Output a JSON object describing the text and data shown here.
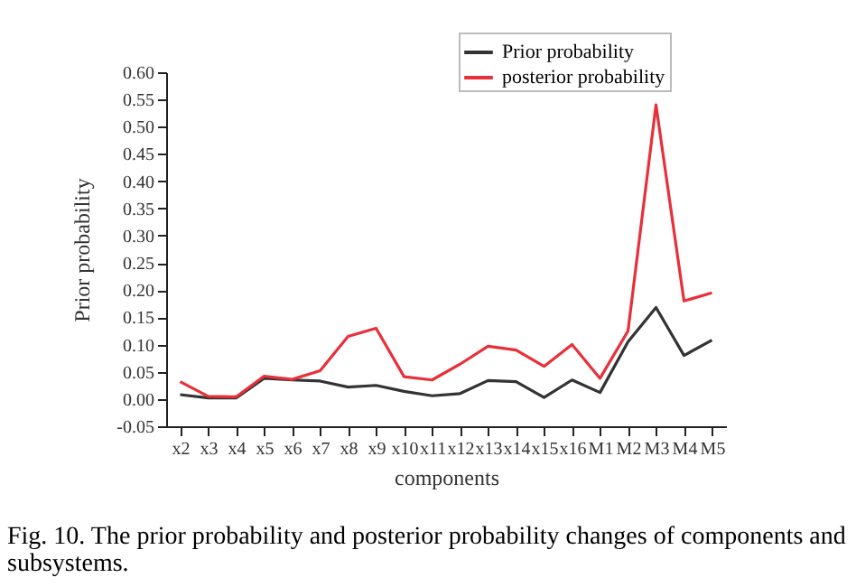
{
  "chart_data": {
    "type": "line",
    "xlabel": "components",
    "ylabel": "Prior probability",
    "categories": [
      "x2",
      "x3",
      "x4",
      "x5",
      "x6",
      "x7",
      "x8",
      "x9",
      "x10",
      "x11",
      "x12",
      "x13",
      "x14",
      "x15",
      "x16",
      "M1",
      "M2",
      "M3",
      "M4",
      "M5"
    ],
    "series": [
      {
        "name": "Prior probability",
        "color": "#333333",
        "values": [
          0.008,
          0.002,
          0.002,
          0.038,
          0.035,
          0.033,
          0.022,
          0.025,
          0.014,
          0.006,
          0.01,
          0.034,
          0.032,
          0.003,
          0.035,
          0.012,
          0.105,
          0.168,
          0.08,
          0.108
        ]
      },
      {
        "name": "posterior probability",
        "color": "#e8303a",
        "values": [
          0.032,
          0.005,
          0.004,
          0.042,
          0.036,
          0.052,
          0.115,
          0.13,
          0.041,
          0.035,
          0.064,
          0.097,
          0.09,
          0.06,
          0.1,
          0.038,
          0.125,
          0.54,
          0.18,
          0.195
        ]
      }
    ],
    "ylim": [
      -0.05,
      0.6
    ],
    "yticks": [
      {
        "value": -0.05,
        "label": "-0.05"
      },
      {
        "value": 0,
        "label": "0.00"
      },
      {
        "value": 0.05,
        "label": "0.05"
      },
      {
        "value": 0.1,
        "label": "0.10"
      },
      {
        "value": 0.15,
        "label": "0.15"
      },
      {
        "value": 0.2,
        "label": "0.20"
      },
      {
        "value": 0.25,
        "label": "0.25"
      },
      {
        "value": 0.3,
        "label": "0.30"
      },
      {
        "value": 0.35,
        "label": "0.35"
      },
      {
        "value": 0.4,
        "label": "0.40"
      },
      {
        "value": 0.45,
        "label": "0.45"
      },
      {
        "value": 0.5,
        "label": "0.50"
      },
      {
        "value": 0.55,
        "label": "0.55"
      },
      {
        "value": 0.6,
        "label": "0.60"
      }
    ],
    "grid": false,
    "legend": "top right",
    "marker": "none",
    "line_style": "solid",
    "annotations": [
      "Fig. 10. The prior probability and posterior probability changes of components and subsystems."
    ]
  }
}
